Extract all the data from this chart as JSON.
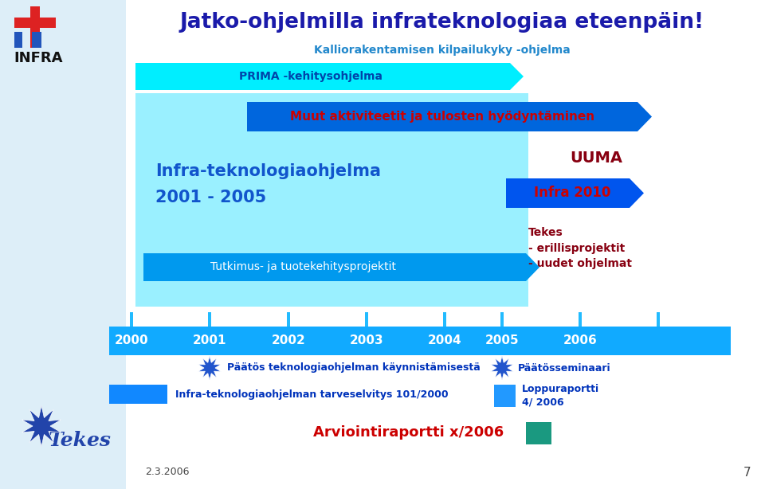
{
  "title": "Jatko-ohjelmilla infrateknologiaa eteenpäin!",
  "title_color": "#1a1aaa",
  "bg_color": "#ffffff",
  "left_panel_color": "#ddeef8",
  "kalliorakentaminen_text": "Kalliorakentamisen kilpailukyky -ohjelma",
  "prima_text": "PRIMA -kehitysohjelma",
  "muut_text": "Muut aktiviteetit ja tulosten hyödyntäminen",
  "infra_prog_line1": "Infra-teknologiaohjelma",
  "infra_prog_line2": "2001 - 2005",
  "tutkimus_text": "Tutkimus- ja tuotekehitysprojektit",
  "uuma_text": "UUMA",
  "infra2010_text": "Infra 2010",
  "tekes_text": "Tekes\n- erillisprojektit\n- uudet ohjelmat",
  "years": [
    "2000",
    "2001",
    "2002",
    "2003",
    "2004",
    "2005",
    "2006"
  ],
  "prima_color": "#00eeff",
  "muut_color": "#0066dd",
  "cyan_bg_color": "#88eeff",
  "tutkimus_color": "#0099ee",
  "infra2010_color": "#0055ee",
  "timeline_color": "#11aaff",
  "tick_color": "#22bbff",
  "star_color": "#2255cc",
  "tarveselvitys_color": "#1188ff",
  "loppuraportti_color": "#2299ff",
  "teal_color": "#1a9980",
  "paatos_text": "Päätös teknologiaohjelman käynnistämisestä",
  "paatos_seminar_text": "Päätösseminaari",
  "tarveselvitys_text": "Infra-teknologiaohjelman tarveselvitys 101/2000",
  "loppuraportti_text": "Loppuraportti\n4/ 2006",
  "arviointiraportti_text": "Arviointiraportti x/2006",
  "date_text": "2.3.2006",
  "page_num": "7",
  "dark_red": "#880011",
  "blue_text": "#0033bb",
  "infra_text_color": "#1155cc"
}
